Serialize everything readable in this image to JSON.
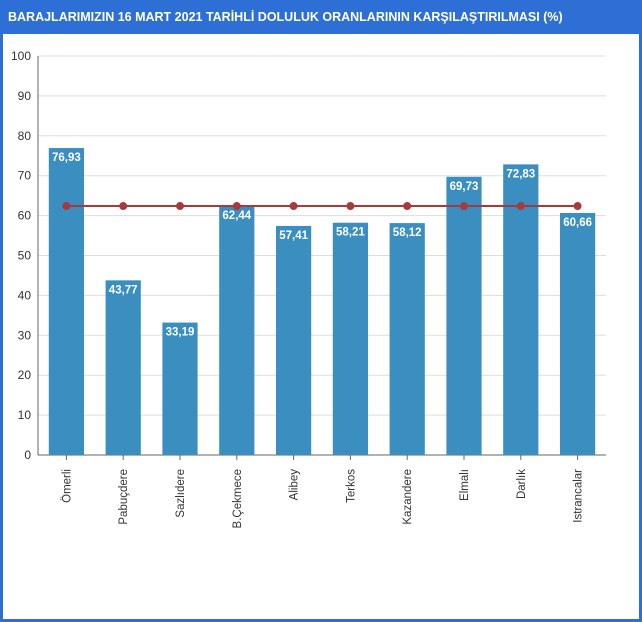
{
  "chart_data": {
    "type": "bar",
    "title": "BARAJLARIMIZIN 16 MART 2021 TARİHLİ DOLULUK ORANLARININ KARŞILAŞTIRILMASI (%)",
    "categories": [
      "Ömerli",
      "Pabuçdere",
      "Sazlıdere",
      "B.Çekmece",
      "Alibey",
      "Terkos",
      "Kazandere",
      "Elmalı",
      "Darlık",
      "Istrancalar"
    ],
    "values": [
      76.93,
      43.77,
      33.19,
      62.44,
      57.41,
      58.21,
      58.12,
      69.73,
      72.83,
      60.66
    ],
    "data_labels": [
      "76,93",
      "43,77",
      "33,19",
      "62,44",
      "57,41",
      "58,21",
      "58,12",
      "69,73",
      "72,83",
      "60,66"
    ],
    "average_line": {
      "value": 62.4
    },
    "ylim": [
      0,
      100
    ],
    "yticks": [
      "0",
      "10",
      "20",
      "30",
      "40",
      "50",
      "60",
      "70",
      "80",
      "90",
      "100"
    ],
    "xlabel": "",
    "ylabel": "",
    "grid": true,
    "colors": {
      "bar": "#3a8fc0",
      "line": "#a83a3a",
      "frame": "#2e6fd6",
      "grid": "#dddddd"
    }
  }
}
